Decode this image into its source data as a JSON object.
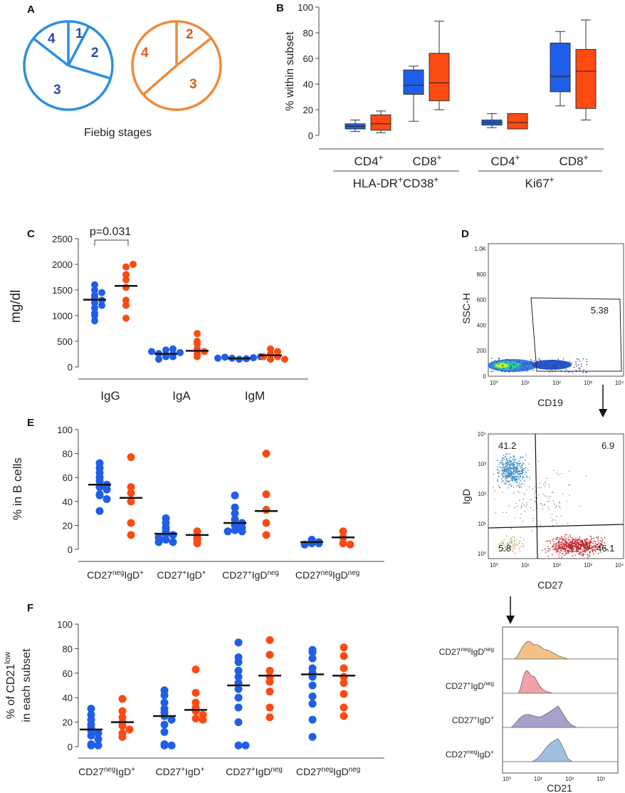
{
  "colors": {
    "blue": "#1f5ee8",
    "red": "#fb4a12",
    "pieBlue": "#2b8fe0",
    "pieOrange": "#ee8a3a",
    "pieBlueText": "#2e4aa8",
    "pieOrangeText": "#e35a17"
  },
  "panelA": {
    "letter": "A",
    "caption": "Fiebig stages",
    "pie_blue_labels": [
      "1",
      "2",
      "3",
      "4"
    ],
    "pie_orange_labels": [
      "2",
      "3",
      "4"
    ]
  },
  "chart_data": [
    {
      "id": "B",
      "letter": "B",
      "type": "box",
      "ylabel": "% within subset",
      "ylim": [
        0,
        100
      ],
      "yticks": [
        0,
        20,
        40,
        60,
        80,
        100
      ],
      "groups": [
        {
          "label": "CD4",
          "sup": "+",
          "boxes": [
            {
              "series": "blue",
              "min": 3,
              "q1": 5,
              "median": 7,
              "q3": 9,
              "max": 12
            },
            {
              "series": "red",
              "min": 2,
              "q1": 4,
              "median": 9,
              "q3": 16,
              "max": 19
            }
          ]
        },
        {
          "label": "CD8",
          "sup": "+",
          "boxes": [
            {
              "series": "blue",
              "min": 11,
              "q1": 32,
              "median": 39,
              "q3": 51,
              "max": 54
            },
            {
              "series": "red",
              "min": 20,
              "q1": 27,
              "median": 41,
              "q3": 64,
              "max": 89
            }
          ]
        },
        {
          "label": "CD4",
          "sup": "+",
          "boxes": [
            {
              "series": "blue",
              "min": 6,
              "q1": 8,
              "median": 10,
              "q3": 12,
              "max": 17
            },
            {
              "series": "red",
              "min": 5,
              "q1": 5,
              "median": 10,
              "q3": 17,
              "max": 17
            }
          ]
        },
        {
          "label": "CD8",
          "sup": "+",
          "boxes": [
            {
              "series": "blue",
              "min": 23,
              "q1": 34,
              "median": 46,
              "q3": 72,
              "max": 81
            },
            {
              "series": "red",
              "min": 12,
              "q1": 21,
              "median": 50,
              "q3": 67,
              "max": 90
            }
          ]
        }
      ],
      "supergroups": [
        {
          "label": "HLA-DR",
          "sup": "+",
          "label2": "CD38",
          "sup2": "+"
        },
        {
          "label": "Ki67",
          "sup": "+"
        }
      ]
    },
    {
      "id": "C",
      "letter": "C",
      "type": "scatter",
      "ylabel": "mg/dl",
      "ylim": [
        0,
        2500
      ],
      "yticks": [
        0,
        500,
        1000,
        1500,
        2000,
        2500
      ],
      "annotation": "p=0.031",
      "categories": [
        "IgG",
        "IgA",
        "IgM"
      ],
      "series": [
        {
          "name": "blue",
          "groups": [
            [
              1050,
              900,
              1150,
              1250,
              1300,
              1350,
              1400,
              1450,
              1500,
              1600,
              1200,
              1000
            ],
            [
              200,
              230,
              250,
              260,
              280,
              300,
              330,
              350,
              200,
              150
            ],
            [
              150,
              160,
              170,
              180,
              190,
              200,
              170
            ]
          ],
          "medians": [
            1310,
            255,
            165
          ]
        },
        {
          "name": "red",
          "groups": [
            [
              950,
              1200,
              1300,
              1550,
              1700,
              1800,
              1950,
              2000
            ],
            [
              200,
              250,
              300,
              350,
              450,
              500,
              650
            ],
            [
              150,
              200,
              250,
              300,
              350,
              200,
              150
            ]
          ],
          "medians": [
            1580,
            315,
            225
          ]
        }
      ]
    },
    {
      "id": "D",
      "letter": "D",
      "type": "flow-cytometry",
      "plot1": {
        "ylabel": "SSC-H",
        "xlabel": "CD19",
        "gate_value": "5.38",
        "yticks": [
          "0",
          "200",
          "400",
          "600",
          "800",
          "1,0K"
        ],
        "xticks": [
          "10⁰",
          "10¹",
          "10²",
          "10³",
          "10⁴"
        ]
      },
      "plot2": {
        "ylabel": "IgD",
        "xlabel": "CD27",
        "quadrants": {
          "upper_left": "41.2",
          "upper_right": "6.9",
          "lower_left": "5.8",
          "lower_right": "46.1"
        },
        "ticks": [
          "10⁰",
          "10¹",
          "10²",
          "10³",
          "10⁴"
        ]
      },
      "plot3": {
        "xlabel": "CD21",
        "rows": [
          {
            "label": "CD27",
            "sup": "neg",
            "label2": "IgD",
            "sup2": "neg",
            "color": "#f0b671"
          },
          {
            "label": "CD27",
            "sup": "+",
            "label2": "IgD",
            "sup2": "neg",
            "color": "#ef8f98"
          },
          {
            "label": "CD27",
            "sup": "+",
            "label2": "IgD",
            "sup2": "+",
            "color": "#9b8fc2"
          },
          {
            "label": "CD27",
            "sup": "neg",
            "label2": "IgD",
            "sup2": "+",
            "color": "#8fb4dc"
          }
        ],
        "xticks": [
          "10⁰",
          "10¹",
          "10²",
          "10³"
        ]
      }
    },
    {
      "id": "E",
      "letter": "E",
      "type": "scatter",
      "ylabel": "% in B cells",
      "ylim": [
        0,
        100
      ],
      "yticks": [
        0,
        20,
        40,
        60,
        80,
        100
      ],
      "categories": [
        {
          "a": "CD27",
          "asup": "neg",
          "b": "IgD",
          "bsup": "+"
        },
        {
          "a": "CD27",
          "asup": "+",
          "b": "IgD",
          "bsup": "+"
        },
        {
          "a": "CD27",
          "asup": "+",
          "b": "IgD",
          "bsup": "neg"
        },
        {
          "a": "CD27",
          "asup": "neg",
          "b": "IgD",
          "bsup": "neg"
        }
      ],
      "series": [
        {
          "name": "blue",
          "groups": [
            [
              72,
              68,
              64,
              60,
              57,
              54,
              52,
              50,
              46,
              45,
              42,
              32
            ],
            [
              26,
              22,
              18,
              15,
              13,
              12,
              10,
              8,
              6,
              6
            ],
            [
              45,
              35,
              30,
              25,
              22,
              20,
              18,
              16,
              15,
              15
            ],
            [
              8,
              6,
              5,
              5,
              4
            ]
          ],
          "medians": [
            54,
            13,
            22,
            6
          ]
        },
        {
          "name": "red",
          "groups": [
            [
              77,
              52,
              47,
              40,
              22,
              12
            ],
            [
              15,
              10,
              8,
              5
            ],
            [
              80,
              46,
              33,
              22,
              12
            ],
            [
              15,
              10,
              5,
              4
            ]
          ],
          "medians": [
            43,
            12,
            32,
            10
          ]
        }
      ]
    },
    {
      "id": "F",
      "letter": "F",
      "type": "scatter",
      "ylabel_lines": [
        "% of CD21",
        "in each subset"
      ],
      "ylabel_sup": "low",
      "ylim": [
        0,
        100
      ],
      "yticks": [
        0,
        20,
        40,
        60,
        80,
        100
      ],
      "categories": [
        {
          "a": "CD27",
          "asup": "neg",
          "b": "IgD",
          "bsup": "+"
        },
        {
          "a": "CD27",
          "asup": "+",
          "b": "IgD",
          "bsup": "+"
        },
        {
          "a": "CD27",
          "asup": "+",
          "b": "IgD",
          "bsup": "neg"
        },
        {
          "a": "CD27",
          "asup": "neg",
          "b": "IgD",
          "bsup": "neg"
        }
      ],
      "series": [
        {
          "name": "blue",
          "groups": [
            [
              31,
              26,
              22,
              18,
              15,
              13,
              11,
              9,
              6,
              2,
              1,
              1
            ],
            [
              46,
              42,
              36,
              31,
              28,
              25,
              22,
              18,
              12,
              2,
              1,
              1
            ],
            [
              85,
              73,
              69,
              62,
              57,
              52,
              47,
              40,
              32,
              20,
              1,
              1
            ],
            [
              79,
              77,
              72,
              64,
              60,
              57,
              50,
              41,
              35,
              22,
              8
            ]
          ],
          "medians": [
            14,
            25,
            50,
            59
          ]
        },
        {
          "name": "red",
          "groups": [
            [
              39,
              29,
              24,
              20,
              17,
              14,
              11,
              8
            ],
            [
              63,
              44,
              36,
              32,
              29,
              26,
              23,
              22
            ],
            [
              87,
              75,
              62,
              57,
              53,
              45,
              32,
              24
            ],
            [
              81,
              74,
              64,
              57,
              52,
              43,
              32,
              25
            ]
          ],
          "medians": [
            20,
            30,
            58,
            58
          ]
        }
      ]
    }
  ]
}
